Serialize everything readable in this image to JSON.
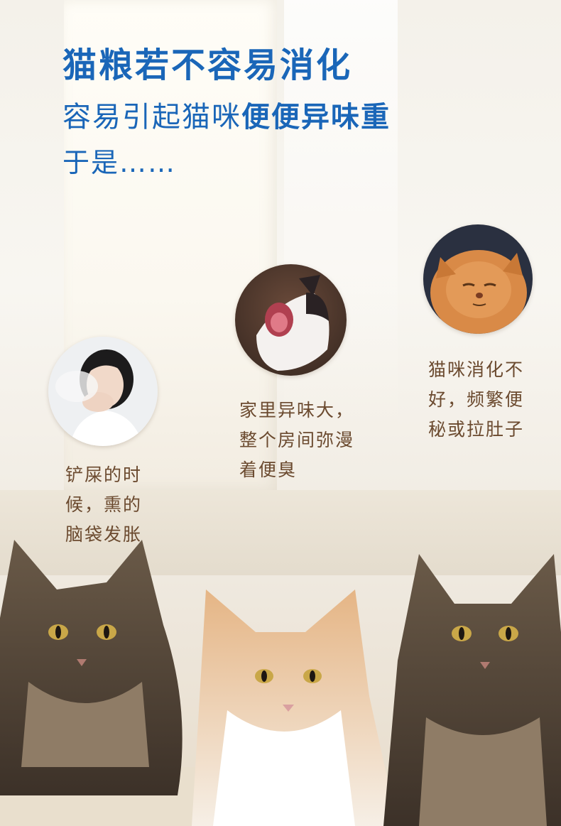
{
  "headline": "猫粮若不容易消化",
  "subline": {
    "normal": "容易引起猫咪",
    "bold": "便便异味重"
  },
  "tail": "于是……",
  "items": [
    {
      "image": "woman-covering-nose",
      "lines": [
        "铲屎的时",
        "候，熏的",
        "脑袋发胀"
      ]
    },
    {
      "image": "yawning-cat",
      "lines": [
        "家里异味大，",
        "整个房间弥漫",
        "着便臭"
      ]
    },
    {
      "image": "grumpy-orange-cat",
      "lines": [
        "猫咪消化不",
        "好，频繁便",
        "秘或拉肚子"
      ]
    }
  ],
  "colors": {
    "accent": "#1a66b8",
    "caption": "#6b4a2f"
  }
}
